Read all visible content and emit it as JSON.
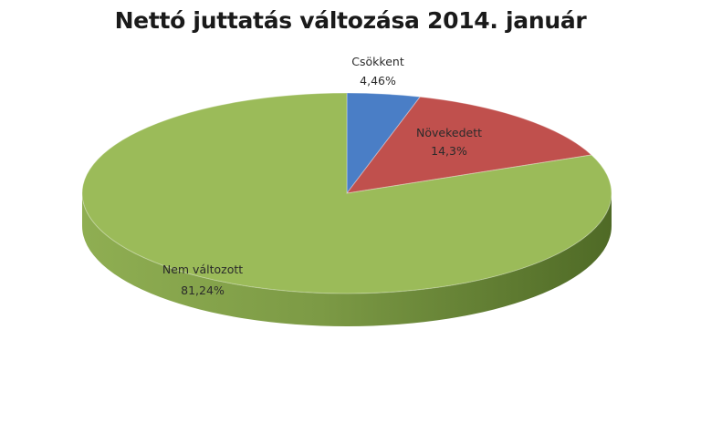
{
  "chart_data": {
    "type": "pie",
    "title": "Nettó juttatás változása 2014. január",
    "slices": [
      {
        "label": "Csökkent",
        "value_label": "4,46%",
        "value": 4.46,
        "color": "#4a7ec6"
      },
      {
        "label": "Növekedett",
        "value_label": "14,3%",
        "value": 14.3,
        "color": "#c0504d"
      },
      {
        "label": "Nem változott",
        "value_label": "81,24%",
        "value": 81.24,
        "color": "#9bbb59"
      }
    ]
  }
}
